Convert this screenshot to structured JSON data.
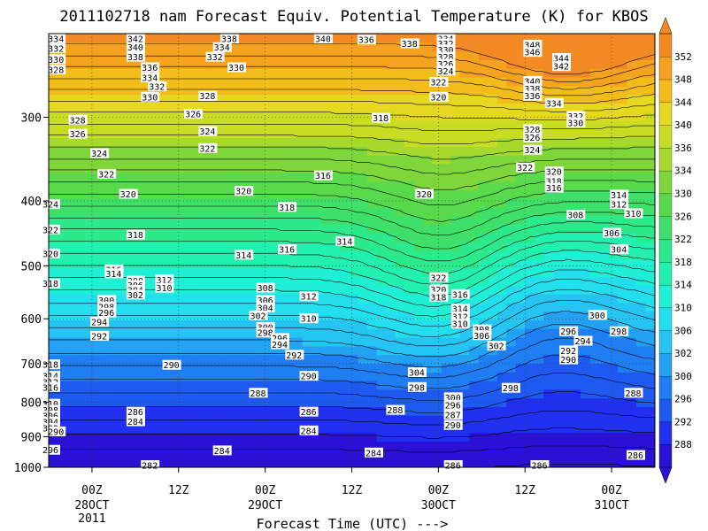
{
  "chart_data": {
    "type": "heatmap",
    "title": "2011102718 nam Forecast Equiv. Potential Temperature (K) for KBOS",
    "xlabel": "Forecast Time (UTC) --->",
    "ylabel": "",
    "y_scale": "log-pressure",
    "y_reversed": true,
    "ylim": [
      1000,
      225
    ],
    "xlim": [
      "2011-10-27T18Z",
      "2011-10-31T06Z"
    ],
    "x_ticks": [
      {
        "time": "2011-10-28T00Z",
        "label": "00Z",
        "sub": "28OCT",
        "sub2": "2011"
      },
      {
        "time": "2011-10-28T12Z",
        "label": "12Z",
        "sub": "",
        "sub2": ""
      },
      {
        "time": "2011-10-29T00Z",
        "label": "00Z",
        "sub": "29OCT",
        "sub2": ""
      },
      {
        "time": "2011-10-29T12Z",
        "label": "12Z",
        "sub": "",
        "sub2": ""
      },
      {
        "time": "2011-10-30T00Z",
        "label": "00Z",
        "sub": "30OCT",
        "sub2": ""
      },
      {
        "time": "2011-10-30T12Z",
        "label": "12Z",
        "sub": "",
        "sub2": ""
      },
      {
        "time": "2011-10-31T00Z",
        "label": "00Z",
        "sub": "31OCT",
        "sub2": ""
      }
    ],
    "y_ticks": [
      300,
      400,
      500,
      600,
      700,
      800,
      900,
      1000
    ],
    "grid": true,
    "colorbar": {
      "levels": [
        284,
        288,
        292,
        296,
        300,
        302,
        306,
        310,
        314,
        318,
        322,
        326,
        330,
        334,
        336,
        340,
        344,
        348,
        352
      ],
      "colors": [
        "#2b10d6",
        "#2030ee",
        "#1f5af0",
        "#1f7ef2",
        "#23a2f3",
        "#25c4f3",
        "#23dfee",
        "#1fefd4",
        "#22f0ae",
        "#2ce98c",
        "#3fe06a",
        "#58da4c",
        "#7ed63a",
        "#a6d92c",
        "#c8dc24",
        "#e6d81e",
        "#f2bc1a",
        "#f5a21e",
        "#f38a24"
      ]
    },
    "contour_labels": [
      {
        "hour": 1,
        "p": 229,
        "v": "334"
      },
      {
        "hour": 1,
        "p": 237,
        "v": "332"
      },
      {
        "hour": 1,
        "p": 246,
        "v": "330"
      },
      {
        "hour": 1,
        "p": 255,
        "v": "328"
      },
      {
        "hour": 12,
        "p": 222,
        "v": "344"
      },
      {
        "hour": 12,
        "p": 227,
        "v": "342"
      },
      {
        "hour": 12,
        "p": 236,
        "v": "340"
      },
      {
        "hour": 12,
        "p": 244,
        "v": "338"
      },
      {
        "hour": 14,
        "p": 253,
        "v": "336"
      },
      {
        "hour": 14,
        "p": 262,
        "v": "334"
      },
      {
        "hour": 15,
        "p": 270,
        "v": "332"
      },
      {
        "hour": 14,
        "p": 280,
        "v": "330"
      },
      {
        "hour": 25,
        "p": 226,
        "v": "338"
      },
      {
        "hour": 24,
        "p": 236,
        "v": "334"
      },
      {
        "hour": 23,
        "p": 244,
        "v": "332"
      },
      {
        "hour": 26,
        "p": 253,
        "v": "330"
      },
      {
        "hour": 22,
        "p": 279,
        "v": "328"
      },
      {
        "hour": 20,
        "p": 297,
        "v": "326"
      },
      {
        "hour": 22,
        "p": 315,
        "v": "324"
      },
      {
        "hour": 22,
        "p": 334,
        "v": "322"
      },
      {
        "hour": 38,
        "p": 223,
        "v": "340"
      },
      {
        "hour": 44,
        "p": 230,
        "v": "336"
      },
      {
        "hour": 50,
        "p": 233,
        "v": "338"
      },
      {
        "hour": 55,
        "p": 228,
        "v": "334"
      },
      {
        "hour": 55,
        "p": 233,
        "v": "332"
      },
      {
        "hour": 55,
        "p": 238,
        "v": "330"
      },
      {
        "hour": 55,
        "p": 244,
        "v": "328"
      },
      {
        "hour": 55,
        "p": 250,
        "v": "326"
      },
      {
        "hour": 55,
        "p": 256,
        "v": "324"
      },
      {
        "hour": 54,
        "p": 266,
        "v": "322"
      },
      {
        "hour": 54,
        "p": 280,
        "v": "320"
      },
      {
        "hour": 46,
        "p": 301,
        "v": "318"
      },
      {
        "hour": 67,
        "p": 234,
        "v": "348"
      },
      {
        "hour": 67,
        "p": 240,
        "v": "346"
      },
      {
        "hour": 71,
        "p": 245,
        "v": "344"
      },
      {
        "hour": 71,
        "p": 252,
        "v": "342"
      },
      {
        "hour": 67,
        "p": 265,
        "v": "340"
      },
      {
        "hour": 67,
        "p": 272,
        "v": "338"
      },
      {
        "hour": 67,
        "p": 279,
        "v": "336"
      },
      {
        "hour": 70,
        "p": 286,
        "v": "334"
      },
      {
        "hour": 73,
        "p": 299,
        "v": "332"
      },
      {
        "hour": 73,
        "p": 306,
        "v": "330"
      },
      {
        "hour": 67,
        "p": 313,
        "v": "328"
      },
      {
        "hour": 67,
        "p": 322,
        "v": "326"
      },
      {
        "hour": 67,
        "p": 336,
        "v": "324"
      },
      {
        "hour": 66,
        "p": 357,
        "v": "322"
      },
      {
        "hour": 70,
        "p": 362,
        "v": "320"
      },
      {
        "hour": 70,
        "p": 374,
        "v": "318"
      },
      {
        "hour": 70,
        "p": 383,
        "v": "316"
      },
      {
        "hour": 4,
        "p": 303,
        "v": "328"
      },
      {
        "hour": 4,
        "p": 318,
        "v": "326"
      },
      {
        "hour": 7,
        "p": 340,
        "v": "324"
      },
      {
        "hour": 8,
        "p": 365,
        "v": "322"
      },
      {
        "hour": 11,
        "p": 391,
        "v": "320"
      },
      {
        "hour": 12,
        "p": 450,
        "v": "318"
      },
      {
        "hour": -4,
        "p": 405,
        "v": "324"
      },
      {
        "hour": -4,
        "p": 442,
        "v": "322"
      },
      {
        "hour": -3,
        "p": 480,
        "v": "320"
      },
      {
        "hour": -2,
        "p": 532,
        "v": "318"
      },
      {
        "hour": 27,
        "p": 387,
        "v": "320"
      },
      {
        "hour": 33,
        "p": 409,
        "v": "318"
      },
      {
        "hour": 33,
        "p": 473,
        "v": "316"
      },
      {
        "hour": 38,
        "p": 367,
        "v": "316"
      },
      {
        "hour": 41,
        "p": 460,
        "v": "314"
      },
      {
        "hour": 27,
        "p": 482,
        "v": "314"
      },
      {
        "hour": 52,
        "p": 391,
        "v": "320"
      },
      {
        "hour": 79,
        "p": 392,
        "v": "314"
      },
      {
        "hour": 79,
        "p": 405,
        "v": "312"
      },
      {
        "hour": 81,
        "p": 418,
        "v": "310"
      },
      {
        "hour": 73,
        "p": 420,
        "v": "308"
      },
      {
        "hour": 78,
        "p": 447,
        "v": "306"
      },
      {
        "hour": 79,
        "p": 473,
        "v": "304"
      },
      {
        "hour": 9,
        "p": 507,
        "v": "316"
      },
      {
        "hour": 9,
        "p": 514,
        "v": "314"
      },
      {
        "hour": 16,
        "p": 525,
        "v": "312"
      },
      {
        "hour": 16,
        "p": 540,
        "v": "310"
      },
      {
        "hour": 12,
        "p": 527,
        "v": "308"
      },
      {
        "hour": 12,
        "p": 535,
        "v": "306"
      },
      {
        "hour": 12,
        "p": 544,
        "v": "304"
      },
      {
        "hour": 12,
        "p": 553,
        "v": "302"
      },
      {
        "hour": 8,
        "p": 563,
        "v": "300"
      },
      {
        "hour": 8,
        "p": 576,
        "v": "298"
      },
      {
        "hour": 8,
        "p": 588,
        "v": "296"
      },
      {
        "hour": 7,
        "p": 607,
        "v": "294"
      },
      {
        "hour": 7,
        "p": 637,
        "v": "292"
      },
      {
        "hour": 30,
        "p": 540,
        "v": "308"
      },
      {
        "hour": 30,
        "p": 563,
        "v": "306"
      },
      {
        "hour": 30,
        "p": 578,
        "v": "304"
      },
      {
        "hour": 29,
        "p": 594,
        "v": "302"
      },
      {
        "hour": 30,
        "p": 618,
        "v": "300"
      },
      {
        "hour": 30,
        "p": 630,
        "v": "298"
      },
      {
        "hour": 32,
        "p": 642,
        "v": "296"
      },
      {
        "hour": 32,
        "p": 656,
        "v": "294"
      },
      {
        "hour": 34,
        "p": 680,
        "v": "292"
      },
      {
        "hour": 36,
        "p": 556,
        "v": "312"
      },
      {
        "hour": 36,
        "p": 600,
        "v": "310"
      },
      {
        "hour": 54,
        "p": 521,
        "v": "322"
      },
      {
        "hour": 54,
        "p": 543,
        "v": "320"
      },
      {
        "hour": 54,
        "p": 557,
        "v": "318"
      },
      {
        "hour": 57,
        "p": 552,
        "v": "316"
      },
      {
        "hour": 57,
        "p": 580,
        "v": "314"
      },
      {
        "hour": 57,
        "p": 596,
        "v": "312"
      },
      {
        "hour": 57,
        "p": 611,
        "v": "310"
      },
      {
        "hour": 60,
        "p": 623,
        "v": "308"
      },
      {
        "hour": 60,
        "p": 636,
        "v": "306"
      },
      {
        "hour": 62,
        "p": 659,
        "v": "302"
      },
      {
        "hour": 76,
        "p": 593,
        "v": "300"
      },
      {
        "hour": 72,
        "p": 627,
        "v": "296"
      },
      {
        "hour": 74,
        "p": 648,
        "v": "294"
      },
      {
        "hour": 72,
        "p": 670,
        "v": "292"
      },
      {
        "hour": 72,
        "p": 691,
        "v": "290"
      },
      {
        "hour": 79,
        "p": 627,
        "v": "298"
      },
      {
        "hour": -2,
        "p": 703,
        "v": "318"
      },
      {
        "hour": -1,
        "p": 731,
        "v": "314"
      },
      {
        "hour": 0,
        "p": 747,
        "v": "312"
      },
      {
        "hour": -2,
        "p": 760,
        "v": "316"
      },
      {
        "hour": -4,
        "p": 805,
        "v": "310"
      },
      {
        "hour": -4,
        "p": 822,
        "v": "308"
      },
      {
        "hour": -4,
        "p": 838,
        "v": "306"
      },
      {
        "hour": -4,
        "p": 856,
        "v": "304"
      },
      {
        "hour": -4,
        "p": 875,
        "v": "302"
      },
      {
        "hour": -4,
        "p": 943,
        "v": "296"
      },
      {
        "hour": 1,
        "p": 885,
        "v": "290"
      },
      {
        "hour": 17,
        "p": 704,
        "v": "290"
      },
      {
        "hour": 12,
        "p": 827,
        "v": "286"
      },
      {
        "hour": 12,
        "p": 855,
        "v": "284"
      },
      {
        "hour": 29,
        "p": 775,
        "v": "288"
      },
      {
        "hour": 36,
        "p": 731,
        "v": "290"
      },
      {
        "hour": 36,
        "p": 827,
        "v": "286"
      },
      {
        "hour": 36,
        "p": 882,
        "v": "284"
      },
      {
        "hour": 24,
        "p": 945,
        "v": "284"
      },
      {
        "hour": 45,
        "p": 952,
        "v": "284"
      },
      {
        "hour": 48,
        "p": 822,
        "v": "288"
      },
      {
        "hour": 51,
        "p": 722,
        "v": "304"
      },
      {
        "hour": 51,
        "p": 760,
        "v": "298"
      },
      {
        "hour": 56,
        "p": 787,
        "v": "300"
      },
      {
        "hour": 56,
        "p": 808,
        "v": "296"
      },
      {
        "hour": 56,
        "p": 836,
        "v": "292"
      },
      {
        "hour": 56,
        "p": 866,
        "v": "290"
      },
      {
        "hour": 64,
        "p": 762,
        "v": "298"
      },
      {
        "hour": 56,
        "p": 1052,
        "v": "286"
      },
      {
        "hour": 68,
        "p": 1024,
        "v": "286"
      },
      {
        "hour": 81,
        "p": 775,
        "v": "288"
      },
      {
        "hour": 83,
        "p": 960,
        "v": "286"
      },
      {
        "hour": 14,
        "p": 1156,
        "v": "282"
      },
      {
        "hour": 56,
        "p": 835,
        "v": "287"
      }
    ]
  }
}
